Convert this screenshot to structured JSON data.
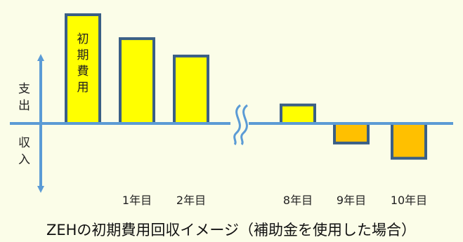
{
  "chart_data": {
    "type": "bar",
    "title": "ZEHの初期費用回収イメージ（補助金を使用した場合）",
    "xlabel": "",
    "ylabel": "",
    "axis_words": {
      "expense": "支出",
      "income": "収入"
    },
    "categories": [
      "初期費用",
      "1年目",
      "2年目",
      "8年目",
      "9年目",
      "10年目"
    ],
    "values": [
      100,
      78,
      62,
      17,
      -18,
      -32
    ],
    "bar_inner_label": "初期費用",
    "ylim": [
      -40,
      100
    ],
    "axis_break_between": [
      "2年目",
      "8年目"
    ],
    "grid": false,
    "legend": "none",
    "colors": {
      "background": "#fbfde8",
      "bar_positive": "#ffff00",
      "bar_negative": "#ffc000",
      "bar_border": "#3a5f86",
      "axis": "#5b9bd5"
    }
  }
}
